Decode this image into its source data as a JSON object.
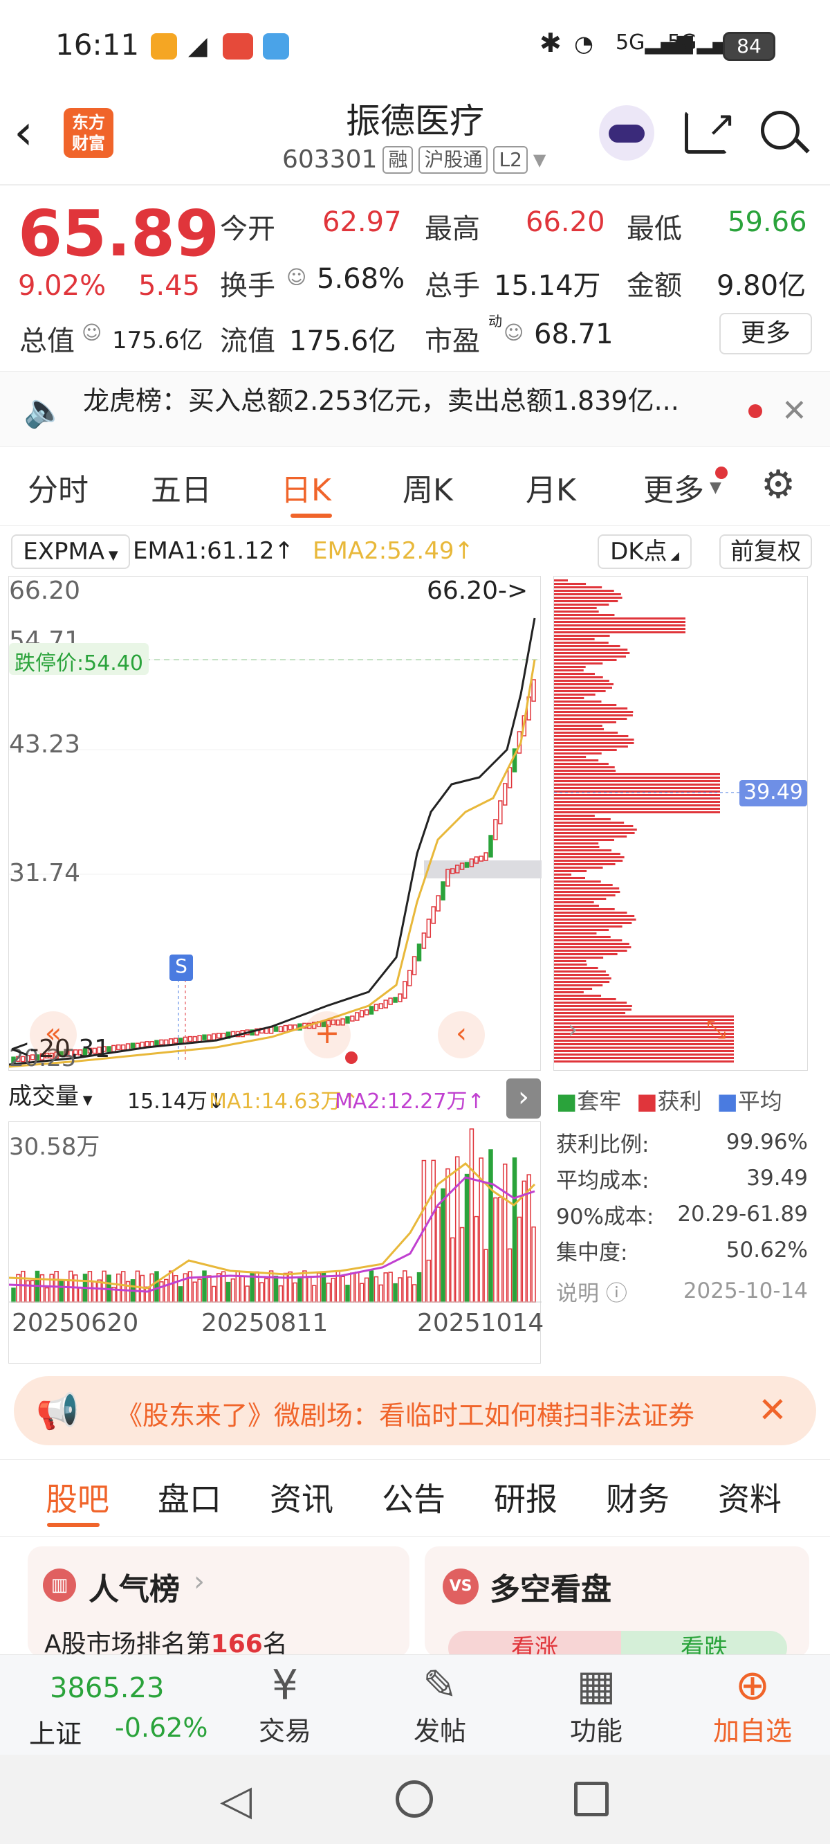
{
  "status_bar": {
    "time": "16:11",
    "battery": "84"
  },
  "header": {
    "logo": "东方\n财富",
    "logo_line1": "东方",
    "logo_line2": "财富",
    "title": "振德医疗",
    "code": "603301",
    "tags": [
      "融",
      "沪股通",
      "L2"
    ]
  },
  "quote": {
    "price": "65.89",
    "change_pct": "9.02%",
    "change": "5.45",
    "open_label": "今开",
    "open": "62.97",
    "high_label": "最高",
    "high": "66.20",
    "low_label": "最低",
    "low": "59.66",
    "turnover_label": "换手",
    "turnover": "5.68%",
    "volume_label": "总手",
    "volume": "15.14万",
    "amount_label": "金额",
    "amount": "9.80亿",
    "mktcap_label": "总值",
    "mktcap": "175.6亿",
    "float_label": "流值",
    "float": "175.6亿",
    "pe_label": "市盈",
    "pe_sup": "动",
    "pe": "68.71",
    "more": "更多"
  },
  "notice": {
    "text": "龙虎榜：买入总额2.253亿元，卖出总额1.839亿..."
  },
  "ktabs": [
    "分时",
    "五日",
    "日K",
    "周K",
    "月K",
    "更多"
  ],
  "ktab_active": 2,
  "indicator": {
    "name": "EXPMA",
    "ema1": "EMA1:61.12↑",
    "ema2": "EMA2:52.49↑",
    "dk": "DK点",
    "adjust": "前复权"
  },
  "price_axis": {
    "y1": "66.20",
    "y2": "54.71",
    "y3": "43.23",
    "y4": "31.74",
    "y5": "20.25",
    "limit_down": "跌停价:54.40",
    "high_marker": "66.20->",
    "low_marker": "<-20.31",
    "s_badge": "S"
  },
  "volume": {
    "label": "成交量",
    "value": "15.14万↓",
    "ma1": "MA1:14.63万↑",
    "ma2": "MA2:12.27万↑",
    "max": "30.58万",
    "dates": [
      "20250620",
      "20250811",
      "20251014"
    ]
  },
  "chip_profile": {
    "avg_marker": "39.49",
    "legend": [
      "套牢",
      "获利",
      "平均"
    ],
    "stats": [
      {
        "label": "获利比例:",
        "value": "99.96%"
      },
      {
        "label": "平均成本:",
        "value": "39.49"
      },
      {
        "label": "90%成本:",
        "value": "20.29-61.89"
      },
      {
        "label": "集中度:",
        "value": "50.62%"
      }
    ],
    "note_label": "说明",
    "date": "2025-10-14"
  },
  "ad_banner": {
    "text": "《股东来了》微剧场：看临时工如何横扫非法证券"
  },
  "bottom_tabs": [
    "股吧",
    "盘口",
    "资讯",
    "公告",
    "研报",
    "财务",
    "资料"
  ],
  "bottom_tab_active": 0,
  "cards": {
    "popularity_title": "人气榜",
    "popularity_text_prefix": "A股市场排名第",
    "popularity_rank": "166",
    "popularity_text_suffix": "名",
    "vs_badge": "VS",
    "longshort_title": "多空看盘",
    "up": "看涨",
    "down": "看跌"
  },
  "bottom_nav": {
    "index_name": "上证",
    "index_value": "3865.23",
    "index_change": "-0.62%",
    "items": [
      "交易",
      "发帖",
      "功能",
      "加自选"
    ]
  },
  "colors": {
    "red": "#e0353b",
    "green": "#2aa33b",
    "orange": "#f0642a",
    "yellow": "#e8b83a",
    "purple": "#c040d0",
    "blue": "#4a7be0"
  }
}
